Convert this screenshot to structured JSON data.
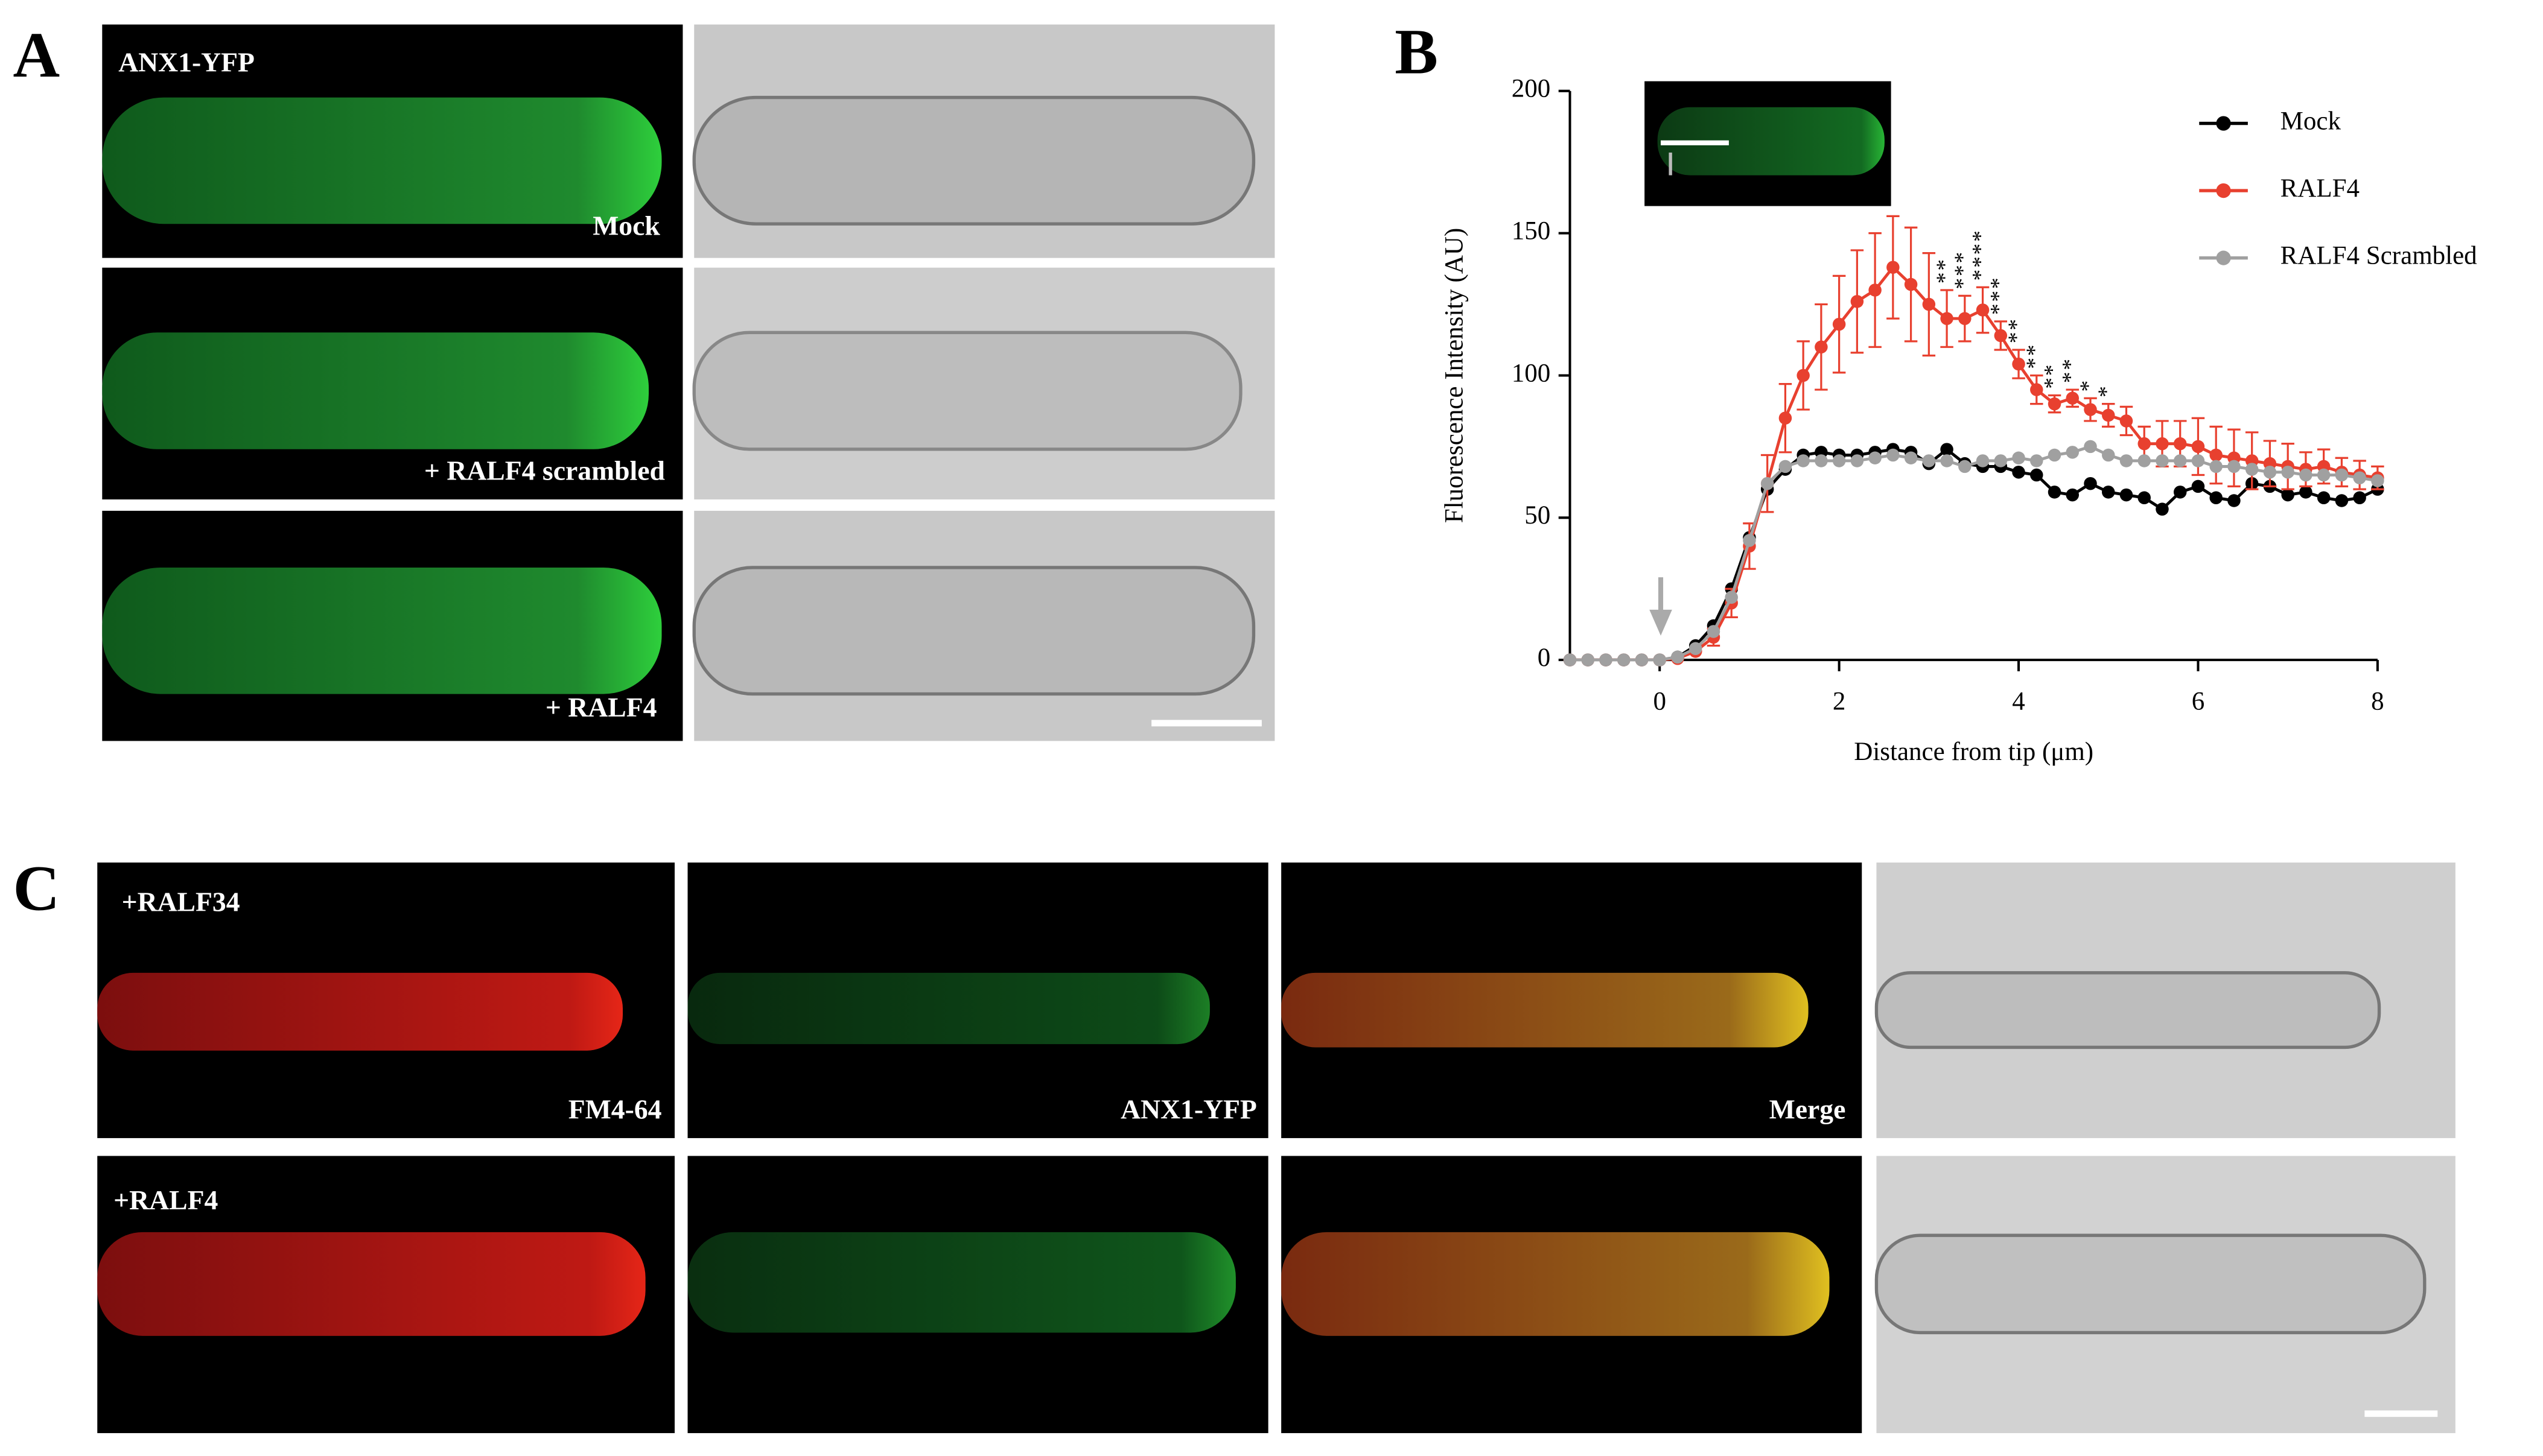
{
  "panels": {
    "a": {
      "label": "A",
      "channel": "ANX1-YFP",
      "conditions": [
        "Mock",
        "+ RALF4 scrambled",
        "+ RALF4"
      ]
    },
    "b": {
      "label": "B"
    },
    "c": {
      "label": "C",
      "conditions": [
        "+RALF34",
        "+RALF4"
      ],
      "channels": [
        "FM4-64",
        "ANX1-YFP",
        "Merge"
      ]
    }
  },
  "chart_data": {
    "type": "line",
    "x_label": "Distance from tip (μm)",
    "y_label": "Fluorescence Intensity (AU)",
    "x": [
      -1,
      -0.8,
      -0.6,
      -0.4,
      -0.2,
      0,
      0.2,
      0.4,
      0.6,
      0.8,
      1,
      1.2,
      1.4,
      1.6,
      1.8,
      2,
      2.2,
      2.4,
      2.6,
      2.8,
      3,
      3.2,
      3.4,
      3.6,
      3.8,
      4,
      4.2,
      4.4,
      4.6,
      4.8,
      5,
      5.2,
      5.4,
      5.6,
      5.8,
      6,
      6.2,
      6.4,
      6.6,
      6.8,
      7,
      7.2,
      7.4,
      7.6,
      7.8,
      8
    ],
    "series": [
      {
        "name": "Mock",
        "color": "#000000",
        "values": [
          0,
          0,
          0,
          0,
          0,
          0,
          1,
          5,
          12,
          25,
          43,
          60,
          67,
          72,
          73,
          72,
          72,
          73,
          74,
          73,
          69,
          74,
          69,
          68,
          68,
          66,
          65,
          59,
          58,
          62,
          59,
          58,
          57,
          53,
          59,
          61,
          57,
          56,
          62,
          61,
          58,
          59,
          57,
          56,
          57,
          60
        ]
      },
      {
        "name": "RALF4",
        "color": "#e8402f",
        "values": [
          0,
          0,
          0,
          0,
          0,
          0,
          0.5,
          3,
          8,
          20,
          40,
          62,
          85,
          100,
          110,
          118,
          126,
          130,
          138,
          132,
          125,
          120,
          120,
          123,
          114,
          104,
          95,
          90,
          92,
          88,
          86,
          84,
          76,
          76,
          76,
          75,
          72,
          71,
          70,
          69,
          68,
          67,
          68,
          66,
          65,
          64
        ],
        "errors": [
          0,
          0,
          0,
          0,
          0,
          0,
          0,
          0,
          3,
          5,
          8,
          10,
          12,
          12,
          15,
          17,
          18,
          20,
          18,
          20,
          18,
          10,
          8,
          8,
          5,
          5,
          5,
          3,
          3,
          4,
          4,
          5,
          6,
          8,
          8,
          10,
          10,
          10,
          10,
          8,
          8,
          6,
          6,
          5,
          5,
          4
        ]
      },
      {
        "name": "RALF4 Scrambled",
        "color": "#a0a0a0",
        "values": [
          0,
          0,
          0,
          0,
          0,
          0,
          1,
          4,
          10,
          22,
          42,
          62,
          68,
          70,
          70,
          70,
          70,
          71,
          72,
          71,
          70,
          70,
          68,
          70,
          70,
          71,
          70,
          72,
          73,
          75,
          72,
          70,
          70,
          70,
          70,
          70,
          68,
          68,
          67,
          66,
          66,
          65,
          65,
          65,
          64,
          63
        ]
      }
    ],
    "annotations": [
      {
        "x": 3.2,
        "text": "**"
      },
      {
        "x": 3.4,
        "text": "***"
      },
      {
        "x": 3.6,
        "text": "****"
      },
      {
        "x": 3.8,
        "text": "***"
      },
      {
        "x": 4,
        "text": "**"
      },
      {
        "x": 4.2,
        "text": "**"
      },
      {
        "x": 4.4,
        "text": "**"
      },
      {
        "x": 4.6,
        "text": "**"
      },
      {
        "x": 4.8,
        "text": "*"
      },
      {
        "x": 5,
        "text": "*"
      }
    ],
    "xlim": [
      -1,
      8
    ],
    "xticks": [
      0,
      2,
      4,
      6,
      8
    ],
    "ylim": [
      0,
      200
    ],
    "yticks": [
      0,
      50,
      100,
      150,
      200
    ],
    "grid": false
  }
}
